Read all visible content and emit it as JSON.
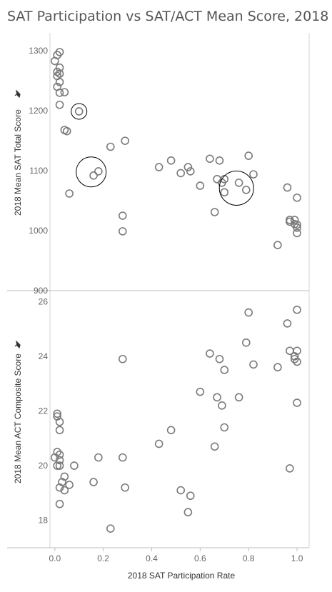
{
  "title": "SAT Participation vs SAT/ACT Mean Score, 2018",
  "chart_data": [
    {
      "type": "scatter",
      "xlabel": "2018 SAT Participation Rate",
      "ylabel": "2018 Mean SAT Total Score",
      "pin_icon": "pin-icon",
      "ylim": [
        900,
        1330
      ],
      "xlim": [
        -0.02,
        1.05
      ],
      "y_ticks": [
        "900",
        "1000",
        "1100",
        "1200",
        "1300"
      ],
      "marker_color": "#7a7a7a",
      "points": [
        [
          0.0,
          1283
        ],
        [
          0.01,
          1293
        ],
        [
          0.02,
          1298
        ],
        [
          0.01,
          1265
        ],
        [
          0.02,
          1272
        ],
        [
          0.02,
          1262
        ],
        [
          0.01,
          1258
        ],
        [
          0.02,
          1248
        ],
        [
          0.01,
          1240
        ],
        [
          0.02,
          1230
        ],
        [
          0.04,
          1231
        ],
        [
          0.02,
          1210
        ],
        [
          0.1,
          1199
        ],
        [
          0.04,
          1168
        ],
        [
          0.05,
          1166
        ],
        [
          0.16,
          1092
        ],
        [
          0.18,
          1099
        ],
        [
          0.06,
          1062
        ],
        [
          0.23,
          1140
        ],
        [
          0.29,
          1150
        ],
        [
          0.28,
          1025
        ],
        [
          0.28,
          999
        ],
        [
          0.43,
          1106
        ],
        [
          0.48,
          1117
        ],
        [
          0.52,
          1096
        ],
        [
          0.55,
          1106
        ],
        [
          0.56,
          1099
        ],
        [
          0.6,
          1075
        ],
        [
          0.64,
          1120
        ],
        [
          0.66,
          1031
        ],
        [
          0.67,
          1086
        ],
        [
          0.68,
          1117
        ],
        [
          0.69,
          1080
        ],
        [
          0.7,
          1086
        ],
        [
          0.7,
          1064
        ],
        [
          0.76,
          1080
        ],
        [
          0.79,
          1068
        ],
        [
          0.8,
          1125
        ],
        [
          0.82,
          1094
        ],
        [
          0.92,
          976
        ],
        [
          0.96,
          1072
        ],
        [
          0.97,
          1018
        ],
        [
          0.97,
          1015
        ],
        [
          0.99,
          1018
        ],
        [
          0.99,
          1011
        ],
        [
          1.0,
          1055
        ],
        [
          1.0,
          1010
        ],
        [
          1.0,
          1005
        ],
        [
          1.0,
          996
        ]
      ],
      "highlight_circles": [
        [
          0.1,
          1199,
          11
        ],
        [
          0.15,
          1098,
          21
        ],
        [
          0.75,
          1071,
          24
        ]
      ]
    },
    {
      "type": "scatter",
      "xlabel": "2018 SAT Participation Rate",
      "ylabel": "2018 Mean ACT Composite Score",
      "pin_icon": "pin-icon",
      "ylim": [
        17.0,
        26.4
      ],
      "xlim": [
        -0.02,
        1.05
      ],
      "y_ticks": [
        "18",
        "20",
        "22",
        "24",
        "26"
      ],
      "x_ticks": [
        "0.0",
        "0.2",
        "0.4",
        "0.6",
        "0.8",
        "1.0"
      ],
      "marker_color": "#7a7a7a",
      "points": [
        [
          0.01,
          21.9
        ],
        [
          0.01,
          21.8
        ],
        [
          0.02,
          21.6
        ],
        [
          0.02,
          21.3
        ],
        [
          0.01,
          20.5
        ],
        [
          0.02,
          20.4
        ],
        [
          0.0,
          20.3
        ],
        [
          0.02,
          20.2
        ],
        [
          0.01,
          20.0
        ],
        [
          0.02,
          20.0
        ],
        [
          0.08,
          20.0
        ],
        [
          0.04,
          19.6
        ],
        [
          0.03,
          19.4
        ],
        [
          0.02,
          19.2
        ],
        [
          0.04,
          19.1
        ],
        [
          0.06,
          19.3
        ],
        [
          0.02,
          18.6
        ],
        [
          0.16,
          19.4
        ],
        [
          0.18,
          20.3
        ],
        [
          0.23,
          17.7
        ],
        [
          0.28,
          23.9
        ],
        [
          0.28,
          20.3
        ],
        [
          0.29,
          19.2
        ],
        [
          0.43,
          20.8
        ],
        [
          0.48,
          21.3
        ],
        [
          0.52,
          19.1
        ],
        [
          0.55,
          18.3
        ],
        [
          0.56,
          18.9
        ],
        [
          0.6,
          22.7
        ],
        [
          0.64,
          24.1
        ],
        [
          0.66,
          20.7
        ],
        [
          0.67,
          22.5
        ],
        [
          0.68,
          23.9
        ],
        [
          0.69,
          22.2
        ],
        [
          0.7,
          23.5
        ],
        [
          0.7,
          21.4
        ],
        [
          0.76,
          22.5
        ],
        [
          0.79,
          24.5
        ],
        [
          0.8,
          25.6
        ],
        [
          0.82,
          23.7
        ],
        [
          0.92,
          23.6
        ],
        [
          0.96,
          25.2
        ],
        [
          0.97,
          24.2
        ],
        [
          0.97,
          19.9
        ],
        [
          0.99,
          24.0
        ],
        [
          0.99,
          23.9
        ],
        [
          1.0,
          25.7
        ],
        [
          1.0,
          24.2
        ],
        [
          1.0,
          23.8
        ],
        [
          1.0,
          22.3
        ]
      ]
    }
  ]
}
